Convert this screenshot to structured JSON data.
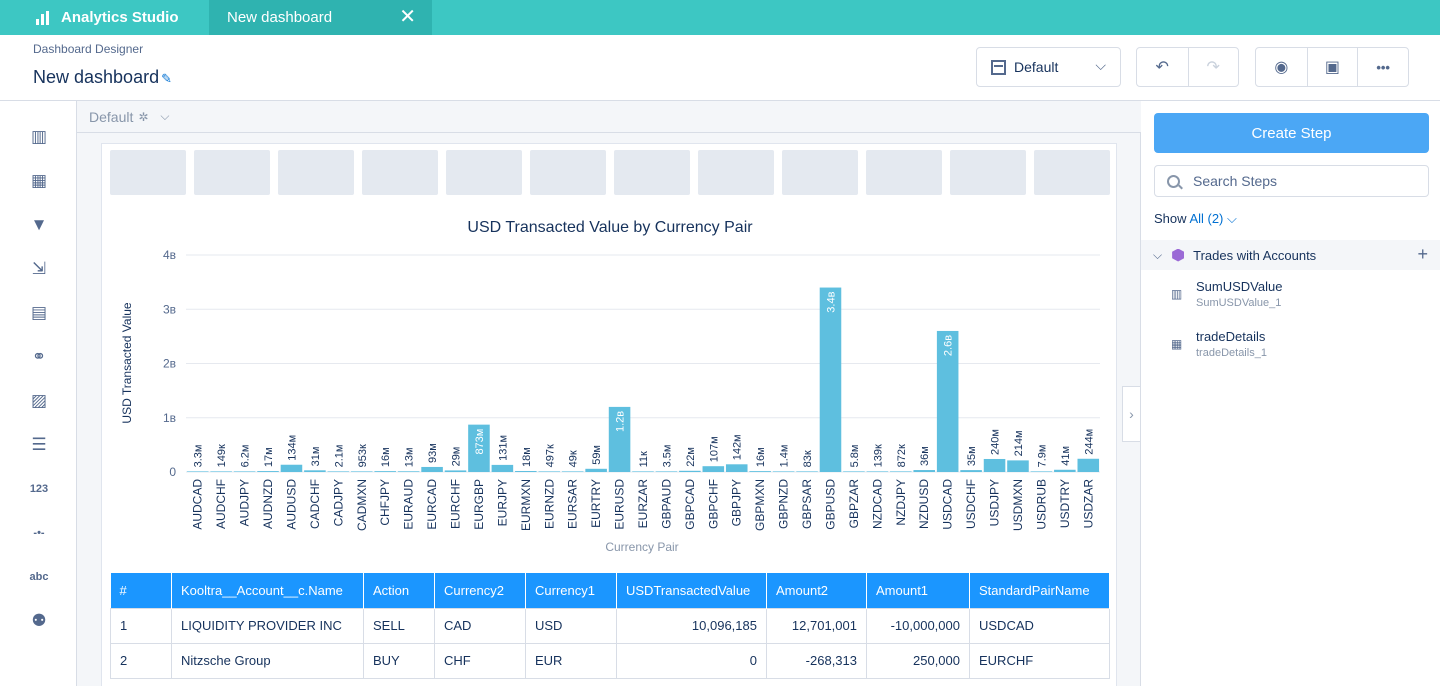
{
  "topbar": {
    "app_name": "Analytics Studio",
    "tab_label": "New dashboard",
    "tab_close": "✕"
  },
  "header": {
    "breadcrumb": "Dashboard Designer",
    "title": "New dashboard",
    "layout_select": "Default",
    "undo": "↶",
    "redo": "↷",
    "preview": "◉",
    "save": "▣",
    "more": "•••"
  },
  "left_rail": [
    {
      "name": "chart-widget-icon",
      "glyph": "▥"
    },
    {
      "name": "table-widget-icon",
      "glyph": "▦"
    },
    {
      "name": "filter-widget-icon",
      "glyph": "▼"
    },
    {
      "name": "toggle-widget-icon",
      "glyph": "⇲"
    },
    {
      "name": "date-widget-icon",
      "glyph": "▤"
    },
    {
      "name": "link-widget-icon",
      "glyph": "⚭"
    },
    {
      "name": "image-widget-icon",
      "glyph": "▨"
    },
    {
      "name": "list-widget-icon",
      "glyph": "☰"
    },
    {
      "name": "number-widget-icon",
      "glyph": "123"
    },
    {
      "name": "range-widget-icon",
      "glyph": "-•-"
    },
    {
      "name": "text-widget-icon",
      "glyph": "abc"
    },
    {
      "name": "container-widget-icon",
      "glyph": "⚉"
    }
  ],
  "layout_bar": {
    "label": "Default",
    "gear": "✲",
    "chevron": "⌵"
  },
  "chart_data": {
    "type": "bar",
    "title": "USD Transacted Value by Currency Pair",
    "xlabel": "Currency Pair",
    "ylabel": "USD Transacted Value",
    "ylim": [
      0,
      4000000000
    ],
    "yticks": [
      {
        "value": 0,
        "label": "0"
      },
      {
        "value": 1000000000,
        "label": "1в"
      },
      {
        "value": 2000000000,
        "label": "2в"
      },
      {
        "value": 3000000000,
        "label": "3в"
      },
      {
        "value": 4000000000,
        "label": "4в"
      }
    ],
    "grid": true,
    "color": "#5ebfdf",
    "categories": [
      "AUDCAD",
      "AUDCHF",
      "AUDJPY",
      "AUDNZD",
      "AUDUSD",
      "CADCHF",
      "CADJPY",
      "CADMXN",
      "CHFJPY",
      "EURAUD",
      "EURCAD",
      "EURCHF",
      "EURGBP",
      "EURJPY",
      "EURMXN",
      "EURNZD",
      "EURSAR",
      "EURTRY",
      "EURUSD",
      "EURZAR",
      "GBPAUD",
      "GBPCAD",
      "GBPCHF",
      "GBPJPY",
      "GBPMXN",
      "GBPNZD",
      "GBPSAR",
      "GBPUSD",
      "GBPZAR",
      "NZDCAD",
      "NZDJPY",
      "NZDUSD",
      "USDCAD",
      "USDCHF",
      "USDJPY",
      "USDMXN",
      "USDRUB",
      "USDTRY",
      "USDZAR"
    ],
    "values": [
      3300000,
      149000,
      6200000,
      17000000,
      134000000,
      31000000,
      2100000,
      953000,
      16000000,
      13000000,
      93000000,
      29000000,
      873000000,
      131000000,
      18000000,
      497000,
      49000,
      59000000,
      1200000000,
      11000,
      3500000,
      22000000,
      107000000,
      142000000,
      16000000,
      1400000,
      83000,
      3400000000,
      5800000,
      139000,
      872000,
      36000000,
      2600000000,
      35000000,
      240000000,
      214000000,
      7900000,
      41000000,
      244000000
    ],
    "data_labels": [
      "3.3м",
      "149к",
      "6.2м",
      "17м",
      "134м",
      "31м",
      "2.1м",
      "953к",
      "16м",
      "13м",
      "93м",
      "29м",
      "873м",
      "131м",
      "18м",
      "497к",
      "49к",
      "59м",
      "1.2в",
      "11к",
      "3.5м",
      "22м",
      "107м",
      "142м",
      "16м",
      "1.4м",
      "83к",
      "3.4в",
      "5.8м",
      "139к",
      "872к",
      "36м",
      "2.6в",
      "35м",
      "240м",
      "214м",
      "7.9м",
      "41м",
      "244м"
    ]
  },
  "table": {
    "columns": [
      "#",
      "Kooltra__Account__c.Name",
      "Action",
      "Currency2",
      "Currency1",
      "USDTransactedValue",
      "Amount2",
      "Amount1",
      "StandardPairName"
    ],
    "rows": [
      [
        "1",
        "LIQUIDITY PROVIDER INC",
        "SELL",
        "CAD",
        "USD",
        "10,096,185",
        "12,701,001",
        "-10,000,000",
        "USDCAD"
      ],
      [
        "2",
        "Nitzsche Group",
        "BUY",
        "CHF",
        "EUR",
        "0",
        "-268,313",
        "250,000",
        "EURCHF"
      ]
    ]
  },
  "right_panel": {
    "create_step": "Create Step",
    "search_placeholder": "Search Steps",
    "show_label": "Show",
    "show_value": "All (2)",
    "group_name": "Trades with Accounts",
    "steps": [
      {
        "icon": "bar-chart-icon",
        "glyph": "▥",
        "name": "SumUSDValue",
        "sub": "SumUSDValue_1"
      },
      {
        "icon": "table-icon",
        "glyph": "▦",
        "name": "tradeDetails",
        "sub": "tradeDetails_1"
      }
    ]
  },
  "colors": {
    "topbar": "#3dc7c3",
    "accent": "#1b96ff",
    "bar": "#5ebfdf"
  }
}
